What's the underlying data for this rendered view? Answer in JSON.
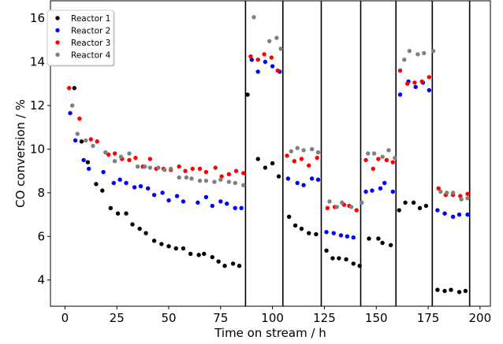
{
  "chart_data": {
    "type": "scatter",
    "title": "",
    "xlabel": "Time on stream / h",
    "ylabel": "CO conversion / %",
    "xlim": [
      -7,
      205
    ],
    "ylim": [
      2.8,
      16.8
    ],
    "xticks": [
      0,
      25,
      50,
      75,
      100,
      125,
      150,
      175,
      200
    ],
    "yticks": [
      4,
      6,
      8,
      10,
      12,
      14,
      16
    ],
    "grid": false,
    "legend_position": "top-left",
    "vertical_lines": [
      87,
      105,
      123.5,
      142.5,
      159.5,
      177,
      195
    ],
    "series": [
      {
        "name": "Reactor 1",
        "color": "#000000",
        "points": [
          [
            4.5,
            12.8
          ],
          [
            8,
            10.35
          ],
          [
            11,
            9.4
          ],
          [
            15,
            8.4
          ],
          [
            18,
            8.1
          ],
          [
            22,
            7.3
          ],
          [
            25.5,
            7.05
          ],
          [
            29.5,
            7.05
          ],
          [
            32.5,
            6.55
          ],
          [
            36,
            6.35
          ],
          [
            39,
            6.15
          ],
          [
            43,
            5.8
          ],
          [
            46.5,
            5.65
          ],
          [
            50,
            5.55
          ],
          [
            53.5,
            5.45
          ],
          [
            57,
            5.45
          ],
          [
            60.5,
            5.2
          ],
          [
            64.5,
            5.15
          ],
          [
            67,
            5.2
          ],
          [
            71,
            5.05
          ],
          [
            74,
            4.85
          ],
          [
            77,
            4.65
          ],
          [
            81,
            4.75
          ],
          [
            84,
            4.65
          ],
          [
            88,
            12.5
          ],
          [
            93,
            9.55
          ],
          [
            96.5,
            9.15
          ],
          [
            100,
            9.35
          ],
          [
            103,
            8.75
          ],
          [
            108,
            6.9
          ],
          [
            111,
            6.5
          ],
          [
            114,
            6.35
          ],
          [
            117.5,
            6.15
          ],
          [
            121,
            6.1
          ],
          [
            126,
            5.35
          ],
          [
            129,
            5.0
          ],
          [
            132,
            5.0
          ],
          [
            135.5,
            4.95
          ],
          [
            139,
            4.75
          ],
          [
            142,
            4.65
          ],
          [
            146.5,
            5.9
          ],
          [
            151,
            5.9
          ],
          [
            153,
            5.7
          ],
          [
            157,
            5.6
          ],
          [
            161,
            7.2
          ],
          [
            164,
            7.55
          ],
          [
            168,
            7.55
          ],
          [
            171,
            7.3
          ],
          [
            174,
            7.4
          ],
          [
            179.5,
            3.55
          ],
          [
            183,
            3.5
          ],
          [
            186,
            3.55
          ],
          [
            190,
            3.45
          ],
          [
            193,
            3.5
          ]
        ]
      },
      {
        "name": "Reactor 2",
        "color": "#0000ff",
        "points": [
          [
            2.5,
            11.65
          ],
          [
            5,
            10.4
          ],
          [
            9,
            9.5
          ],
          [
            11.5,
            9.1
          ],
          [
            18.5,
            8.95
          ],
          [
            23.5,
            8.45
          ],
          [
            26.5,
            8.6
          ],
          [
            29.5,
            8.45
          ],
          [
            33.5,
            8.25
          ],
          [
            36.5,
            8.3
          ],
          [
            40,
            8.2
          ],
          [
            43,
            7.9
          ],
          [
            47,
            8.0
          ],
          [
            50,
            7.65
          ],
          [
            54,
            7.85
          ],
          [
            57,
            7.6
          ],
          [
            64,
            7.55
          ],
          [
            68,
            7.8
          ],
          [
            71,
            7.4
          ],
          [
            75,
            7.6
          ],
          [
            78,
            7.5
          ],
          [
            82,
            7.3
          ],
          [
            85,
            7.3
          ],
          [
            90,
            14.1
          ],
          [
            93,
            13.55
          ],
          [
            96.5,
            14.0
          ],
          [
            100,
            13.8
          ],
          [
            103.5,
            13.55
          ],
          [
            107.5,
            8.65
          ],
          [
            112,
            8.45
          ],
          [
            115,
            8.35
          ],
          [
            119,
            8.65
          ],
          [
            122,
            8.6
          ],
          [
            126,
            6.2
          ],
          [
            129.5,
            6.15
          ],
          [
            133,
            6.05
          ],
          [
            136,
            6.0
          ],
          [
            139,
            5.95
          ],
          [
            145,
            8.05
          ],
          [
            148,
            8.1
          ],
          [
            152,
            8.2
          ],
          [
            154,
            8.45
          ],
          [
            158,
            8.05
          ],
          [
            161.5,
            12.5
          ],
          [
            165.5,
            13.1
          ],
          [
            169,
            12.85
          ],
          [
            172.5,
            13.05
          ],
          [
            175.5,
            12.7
          ],
          [
            179.5,
            7.2
          ],
          [
            183,
            7.05
          ],
          [
            187,
            6.9
          ],
          [
            190,
            7.0
          ],
          [
            194,
            7.0
          ]
        ]
      },
      {
        "name": "Reactor 3",
        "color": "#ff0000",
        "points": [
          [
            2,
            12.8
          ],
          [
            7,
            11.4
          ],
          [
            12.5,
            10.45
          ],
          [
            15.5,
            10.35
          ],
          [
            21,
            9.75
          ],
          [
            24,
            9.8
          ],
          [
            27.5,
            9.55
          ],
          [
            31,
            9.5
          ],
          [
            34,
            9.6
          ],
          [
            37.5,
            9.2
          ],
          [
            41,
            9.55
          ],
          [
            44,
            9.1
          ],
          [
            47.5,
            9.1
          ],
          [
            51,
            9.05
          ],
          [
            55,
            9.2
          ],
          [
            58,
            9.0
          ],
          [
            61.5,
            9.1
          ],
          [
            65,
            9.1
          ],
          [
            68,
            8.95
          ],
          [
            72.5,
            9.15
          ],
          [
            75.5,
            8.75
          ],
          [
            79,
            8.85
          ],
          [
            82.5,
            9.0
          ],
          [
            86,
            8.9
          ],
          [
            89.5,
            14.25
          ],
          [
            93,
            14.1
          ],
          [
            96,
            14.35
          ],
          [
            99.5,
            14.2
          ],
          [
            102.5,
            13.6
          ],
          [
            107,
            9.7
          ],
          [
            110.5,
            9.45
          ],
          [
            114,
            9.55
          ],
          [
            117.5,
            9.25
          ],
          [
            121.5,
            9.6
          ],
          [
            126.5,
            7.3
          ],
          [
            130,
            7.35
          ],
          [
            134.5,
            7.45
          ],
          [
            137,
            7.4
          ],
          [
            140.5,
            7.2
          ],
          [
            145,
            9.5
          ],
          [
            148.5,
            9.1
          ],
          [
            151,
            9.55
          ],
          [
            155,
            9.5
          ],
          [
            158,
            9.4
          ],
          [
            161.5,
            13.6
          ],
          [
            165,
            13.0
          ],
          [
            168.5,
            13.05
          ],
          [
            172,
            13.1
          ],
          [
            175.5,
            13.3
          ],
          [
            180,
            8.2
          ],
          [
            183.5,
            7.9
          ],
          [
            187,
            7.9
          ],
          [
            190.5,
            7.85
          ],
          [
            194,
            7.95
          ]
        ]
      },
      {
        "name": "Reactor 4",
        "color": "#808080",
        "points": [
          [
            3.5,
            12.0
          ],
          [
            6,
            10.7
          ],
          [
            10,
            10.4
          ],
          [
            13.5,
            10.15
          ],
          [
            19.5,
            9.85
          ],
          [
            24,
            9.45
          ],
          [
            27,
            9.65
          ],
          [
            31,
            9.8
          ],
          [
            35,
            9.2
          ],
          [
            38.5,
            9.2
          ],
          [
            41,
            9.15
          ],
          [
            45,
            9.15
          ],
          [
            48,
            9.05
          ],
          [
            51,
            9.1
          ],
          [
            55,
            8.7
          ],
          [
            58.5,
            8.7
          ],
          [
            61,
            8.65
          ],
          [
            65,
            8.55
          ],
          [
            68,
            8.55
          ],
          [
            72,
            8.5
          ],
          [
            75,
            8.6
          ],
          [
            79,
            8.5
          ],
          [
            82,
            8.45
          ],
          [
            86,
            8.35
          ],
          [
            91,
            16.05
          ],
          [
            98.5,
            14.95
          ],
          [
            102,
            15.1
          ],
          [
            104,
            14.6
          ],
          [
            109,
            9.9
          ],
          [
            112,
            10.05
          ],
          [
            115,
            9.95
          ],
          [
            119,
            10.0
          ],
          [
            122,
            9.85
          ],
          [
            127.5,
            7.6
          ],
          [
            131,
            7.35
          ],
          [
            133.5,
            7.55
          ],
          [
            138,
            7.35
          ],
          [
            143,
            7.55
          ],
          [
            146,
            9.8
          ],
          [
            149,
            9.8
          ],
          [
            153,
            9.65
          ],
          [
            156,
            9.95
          ],
          [
            159,
            9.6
          ],
          [
            163.5,
            14.1
          ],
          [
            166,
            14.5
          ],
          [
            170,
            14.35
          ],
          [
            173,
            14.4
          ],
          [
            177.5,
            14.5
          ],
          [
            181,
            8.05
          ],
          [
            184,
            8.0
          ],
          [
            187,
            8.0
          ],
          [
            191,
            7.7
          ],
          [
            194,
            7.75
          ]
        ]
      }
    ]
  }
}
